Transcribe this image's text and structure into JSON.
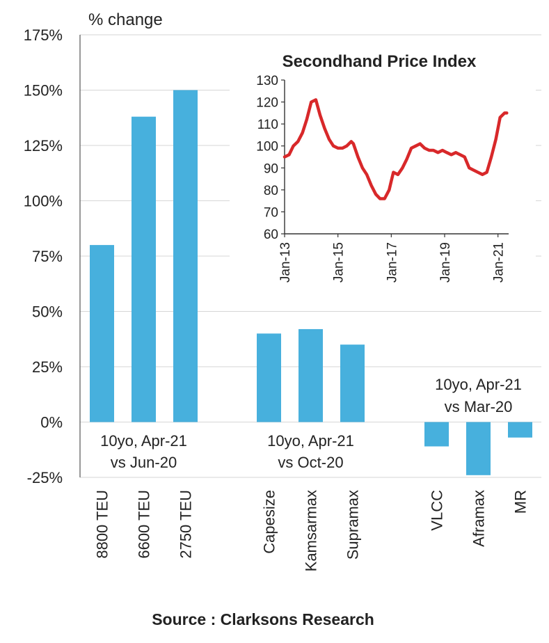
{
  "chart_data": [
    {
      "type": "bar",
      "unit_label": "% change",
      "ylim": [
        -25,
        175
      ],
      "y_ticks": [
        -25,
        0,
        25,
        50,
        75,
        100,
        125,
        150,
        175
      ],
      "y_tick_labels": [
        "-25%",
        "0%",
        "25%",
        "50%",
        "75%",
        "100%",
        "125%",
        "150%",
        "175%"
      ],
      "grid": true,
      "bar_color": "#47B0DD",
      "groups": [
        {
          "label_line1": "10yo, Apr-21",
          "label_line2": "vs Jun-20",
          "categories": [
            "8800 TEU",
            "6600 TEU",
            "2750 TEU"
          ],
          "values": [
            80,
            138,
            150
          ]
        },
        {
          "label_line1": "10yo, Apr-21",
          "label_line2": "vs Oct-20",
          "categories": [
            "Capesize",
            "Kamsarmax",
            "Supramax"
          ],
          "values": [
            40,
            42,
            35
          ]
        },
        {
          "label_line1": "10yo, Apr-21",
          "label_line2": "vs Mar-20",
          "categories": [
            "VLCC",
            "Aframax",
            "MR"
          ],
          "values": [
            -11,
            -24,
            -7
          ]
        }
      ]
    },
    {
      "type": "line",
      "title": "Secondhand Price Index",
      "ylim": [
        60,
        130
      ],
      "y_ticks": [
        60,
        70,
        80,
        90,
        100,
        110,
        120,
        130
      ],
      "x_tick_labels": [
        "Jan-13",
        "Jan-15",
        "Jan-17",
        "Jan-19",
        "Jan-21"
      ],
      "x_tick_years": [
        2013,
        2015,
        2017,
        2019,
        2021
      ],
      "xlim": [
        2013.0,
        2021.4
      ],
      "line_color": "#D8282A",
      "x": [
        2013.0,
        2013.17,
        2013.33,
        2013.5,
        2013.67,
        2013.83,
        2014.0,
        2014.17,
        2014.33,
        2014.5,
        2014.67,
        2014.83,
        2015.0,
        2015.17,
        2015.33,
        2015.5,
        2015.58,
        2015.75,
        2015.92,
        2016.08,
        2016.25,
        2016.42,
        2016.58,
        2016.75,
        2016.92,
        2017.0,
        2017.08,
        2017.25,
        2017.42,
        2017.58,
        2017.75,
        2017.92,
        2018.08,
        2018.25,
        2018.42,
        2018.58,
        2018.75,
        2018.92,
        2019.08,
        2019.25,
        2019.42,
        2019.58,
        2019.75,
        2019.92,
        2020.08,
        2020.25,
        2020.42,
        2020.58,
        2020.75,
        2020.92,
        2021.08,
        2021.25,
        2021.33
      ],
      "y": [
        95,
        96,
        100,
        102,
        106,
        112,
        120,
        121,
        114,
        108,
        103,
        100,
        99,
        99,
        100,
        102,
        101,
        95,
        90,
        87,
        82,
        78,
        76,
        76,
        80,
        84,
        88,
        87,
        90,
        94,
        99,
        100,
        101,
        99,
        98,
        98,
        97,
        98,
        97,
        96,
        97,
        96,
        95,
        90,
        89,
        88,
        87,
        88,
        95,
        103,
        113,
        115,
        115
      ]
    }
  ],
  "source_text": "Source : Clarksons Research"
}
